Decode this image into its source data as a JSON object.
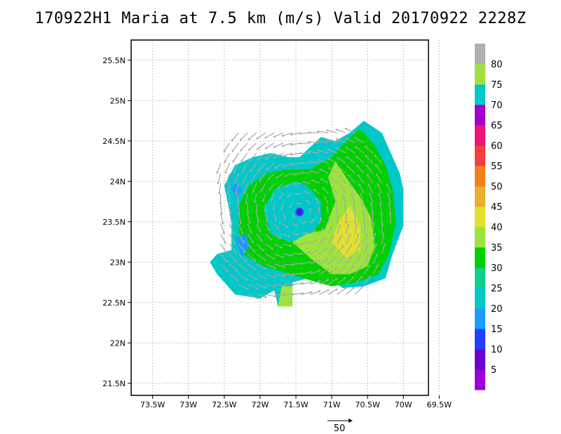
{
  "title": "170922H1 Maria at 7.5 km (m/s) Valid 20170922  2228Z",
  "map": {
    "lon_ticks": [
      "73.5W",
      "73W",
      "72.5W",
      "72W",
      "71.5W",
      "71W",
      "70.5W",
      "70W",
      "69.5W"
    ],
    "lat_ticks": [
      "25.5N",
      "25N",
      "24.5N",
      "24N",
      "23.5N",
      "23N",
      "22.5N",
      "22N",
      "21.5N"
    ],
    "lon_range": [
      -73.8,
      -69.65
    ],
    "lat_range": [
      21.35,
      25.75
    ],
    "grid": "dotted",
    "storm_center": {
      "lon": -71.45,
      "lat": 23.62
    }
  },
  "colorbar": {
    "labels": [
      "5",
      "10",
      "15",
      "20",
      "25",
      "30",
      "35",
      "40",
      "45",
      "50",
      "55",
      "60",
      "65",
      "70",
      "75",
      "80"
    ],
    "colors": [
      "#9c00d8",
      "#6a00cc",
      "#2040ff",
      "#1c9bff",
      "#00c8c8",
      "#10d090",
      "#00d000",
      "#9de43c",
      "#e0e030",
      "#e8b030",
      "#f08020",
      "#f04040",
      "#f01478",
      "#a000c8",
      "#00c8c8",
      "#a0e040",
      "#b0b0b0"
    ]
  },
  "reference_vector": {
    "label": "50",
    "units": "m/s"
  }
}
